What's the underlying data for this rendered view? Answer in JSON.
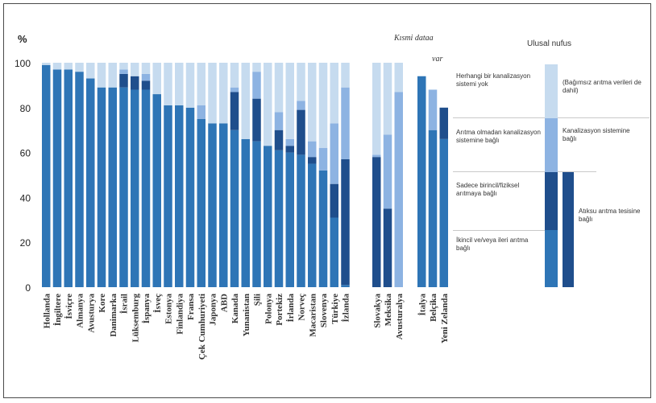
{
  "chart_data": {
    "type": "bar",
    "stacked": true,
    "ylabel": "%",
    "ylim": [
      0,
      100
    ],
    "yticks": [
      0,
      20,
      40,
      60,
      80,
      100
    ],
    "grid": false,
    "groups": [
      {
        "label": "",
        "categories": [
          "Hollanda",
          "İngiltere",
          "İsviçre",
          "Almanya",
          "Avusturya",
          "Kore",
          "Danimarka",
          "İsrail",
          "Lüksemburg",
          "İspanya",
          "İsveç",
          "Estonya",
          "Finlandiya",
          "Fransa",
          "Çek Cumhuriyeti",
          "Japonya",
          "ABD",
          "Kanada",
          "Yunanistan",
          "Şili",
          "Polonya",
          "Portekiz",
          "İrlanda",
          "Norveç",
          "Macaristan",
          "Slovenya",
          "Türkiye",
          "İzlanda"
        ]
      },
      {
        "label": "Kısmi dataa var",
        "categories": [
          "Slovakya",
          "Meksika",
          "Avusturalya"
        ]
      },
      {
        "label": "Ulusal nufus",
        "categories": [
          "İtalya",
          "Belçika",
          "Yeni Zelanda"
        ]
      }
    ],
    "categories": [
      "Hollanda",
      "İngiltere",
      "İsviçre",
      "Almanya",
      "Avusturya",
      "Kore",
      "Danimarka",
      "İsrail",
      "Lüksemburg",
      "İspanya",
      "İsveç",
      "Estonya",
      "Finlandiya",
      "Fransa",
      "Çek Cumhuriyeti",
      "Japonya",
      "ABD",
      "Kanada",
      "Yunanistan",
      "Şili",
      "Polonya",
      "Portekiz",
      "İrlanda",
      "Norveç",
      "Macaristan",
      "Slovenya",
      "Türkiye",
      "İzlanda",
      "Slovakya",
      "Meksika",
      "Avusturalya",
      "İtalya",
      "Belçika",
      "Yeni Zelanda"
    ],
    "series": [
      {
        "name": "İkincil ve/veya ileri arıtma bağlı",
        "color": "#2e75b6",
        "values": [
          99,
          97,
          97,
          96,
          93,
          89,
          89,
          89,
          88,
          88,
          86,
          81,
          81,
          80,
          75,
          73,
          73,
          70,
          66,
          65,
          63,
          61,
          60,
          59,
          55,
          52,
          31,
          1,
          0,
          0,
          0,
          0,
          0,
          0
        ]
      },
      {
        "name": "Sadece birincil/fiziksel arıtmaya bağlı",
        "color": "#1f4e8c",
        "values": [
          0,
          0,
          0,
          0,
          0,
          0,
          0,
          6,
          6,
          4,
          0,
          0,
          0,
          0,
          0,
          0,
          0,
          17,
          0,
          19,
          0,
          9,
          3,
          20,
          3,
          0,
          15,
          56,
          58,
          35,
          0,
          0,
          0,
          0
        ]
      },
      {
        "name": "Arıtma olmadan kanalizasyon sistemine bağlı",
        "color": "#8db3e2",
        "values": [
          0,
          0,
          0,
          0,
          0,
          0,
          0,
          2,
          0,
          3,
          0,
          0,
          0,
          0,
          6,
          0,
          0,
          2,
          0,
          12,
          0,
          8,
          3,
          4,
          7,
          10,
          27,
          32,
          1,
          33,
          87,
          0,
          0,
          0
        ]
      },
      {
        "name": "Herhangi bir kanalizasyon sistemi yok",
        "color": "#c6dbef",
        "values": [
          1,
          3,
          3,
          4,
          7,
          11,
          11,
          3,
          6,
          5,
          14,
          19,
          19,
          20,
          19,
          27,
          27,
          11,
          34,
          4,
          37,
          22,
          34,
          17,
          35,
          38,
          27,
          11,
          41,
          32,
          13,
          0,
          0,
          0
        ]
      },
      {
        "name": "Atıksu arıtma tesisine bağlı",
        "color": "#2e75b6",
        "values": [
          0,
          0,
          0,
          0,
          0,
          0,
          0,
          0,
          0,
          0,
          0,
          0,
          0,
          0,
          0,
          0,
          0,
          0,
          0,
          0,
          0,
          0,
          0,
          0,
          0,
          0,
          0,
          0,
          0,
          0,
          0,
          94,
          70,
          66
        ]
      },
      {
        "name": "Kanalizasyon sistemine bağlı",
        "color": "#1f4e8c",
        "values": [
          0,
          0,
          0,
          0,
          0,
          0,
          0,
          0,
          0,
          0,
          0,
          0,
          0,
          0,
          0,
          0,
          0,
          0,
          0,
          0,
          0,
          0,
          0,
          0,
          0,
          0,
          0,
          0,
          0,
          0,
          0,
          0,
          0,
          14
        ]
      },
      {
        "name": "Kanalizasyon sistemine bağlı (üst)",
        "color": "#8db3e2",
        "values": [
          0,
          0,
          0,
          0,
          0,
          0,
          0,
          0,
          0,
          0,
          0,
          0,
          0,
          0,
          0,
          0,
          0,
          0,
          0,
          0,
          0,
          0,
          0,
          0,
          0,
          0,
          0,
          0,
          0,
          0,
          0,
          0,
          18,
          0
        ]
      }
    ]
  },
  "legend": {
    "header": "Ulusal nufus",
    "side_title": "Kısmi dataa",
    "side_title_2": "var",
    "items": [
      {
        "label": "Herhangi bir kanalizasyon sistemi yok"
      },
      {
        "label": "Arıtma olmadan kanalizasyon sistemine bağlı"
      },
      {
        "label": "Sadece birincil/fiziksel arıtmaya bağlı"
      },
      {
        "label": "İkincil ve/veya ileri arıtma bağlı"
      }
    ],
    "right_labels": [
      {
        "label": "(Bağımsız arıtma verileri de dahil)"
      },
      {
        "label": "Kanalizasyon sistemine bağlı"
      },
      {
        "label": "Atıksu arıtma tesisine bağlı"
      }
    ],
    "colors": {
      "none": "#c6dbef",
      "no_treatment": "#8db3e2",
      "primary": "#1f4e8c",
      "secondary": "#2e75b6"
    }
  }
}
